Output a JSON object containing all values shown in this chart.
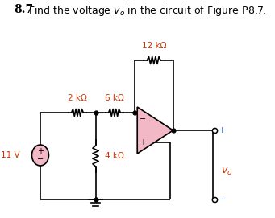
{
  "title": "8.7",
  "subtitle": "Find the voltage $v_o$ in the circuit of Figure P8.7.",
  "label_color": "#cc3300",
  "bg_color": "#ffffff",
  "wire_color": "#000000",
  "opamp_fill": "#f2b8c6",
  "opamp_edge": "#000000",
  "source_fill": "#f2b8c6",
  "source_edge": "#000000",
  "r1_label": "2 kΩ",
  "r2_label": "6 kΩ",
  "r3_label": "12 kΩ",
  "r4_label": "4 kΩ",
  "vs_label": "11 V",
  "vo_label": "$v_o$",
  "plus_color": "#3366cc",
  "minus_color": "#3366cc"
}
